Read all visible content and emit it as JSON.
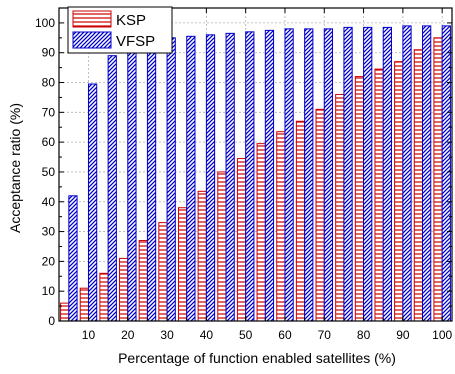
{
  "chart_data": {
    "type": "bar",
    "xlabel": "Percentage of function enabled satellites (%)",
    "ylabel": "Acceptance ratio (%)",
    "ylim": [
      0,
      105
    ],
    "y_ticks": [
      0,
      10,
      20,
      30,
      40,
      50,
      60,
      70,
      80,
      90,
      100
    ],
    "x_tick_labels": [
      "10",
      "20",
      "30",
      "40",
      "50",
      "60",
      "70",
      "80",
      "90",
      "100"
    ],
    "x": [
      5,
      10,
      15,
      20,
      25,
      30,
      35,
      40,
      45,
      50,
      55,
      60,
      65,
      70,
      75,
      80,
      85,
      90,
      95,
      100
    ],
    "grid": true,
    "legend_position": "top-left",
    "series": [
      {
        "name": "KSP",
        "color": "#cc0000",
        "pattern": "horizontal-lines",
        "values": [
          6,
          11,
          16,
          21,
          27,
          33,
          38,
          43.5,
          50,
          54.5,
          59.5,
          63.5,
          67,
          71,
          76,
          82,
          84.5,
          87,
          91,
          95
        ]
      },
      {
        "name": "VFSP",
        "color": "#0000cc",
        "pattern": "diagonal-lines",
        "values": [
          42,
          79.5,
          89,
          93.5,
          94,
          95,
          95.5,
          96,
          96.5,
          97,
          97.5,
          98,
          98,
          98,
          98.5,
          98.5,
          98.5,
          99,
          99,
          99
        ]
      }
    ]
  }
}
